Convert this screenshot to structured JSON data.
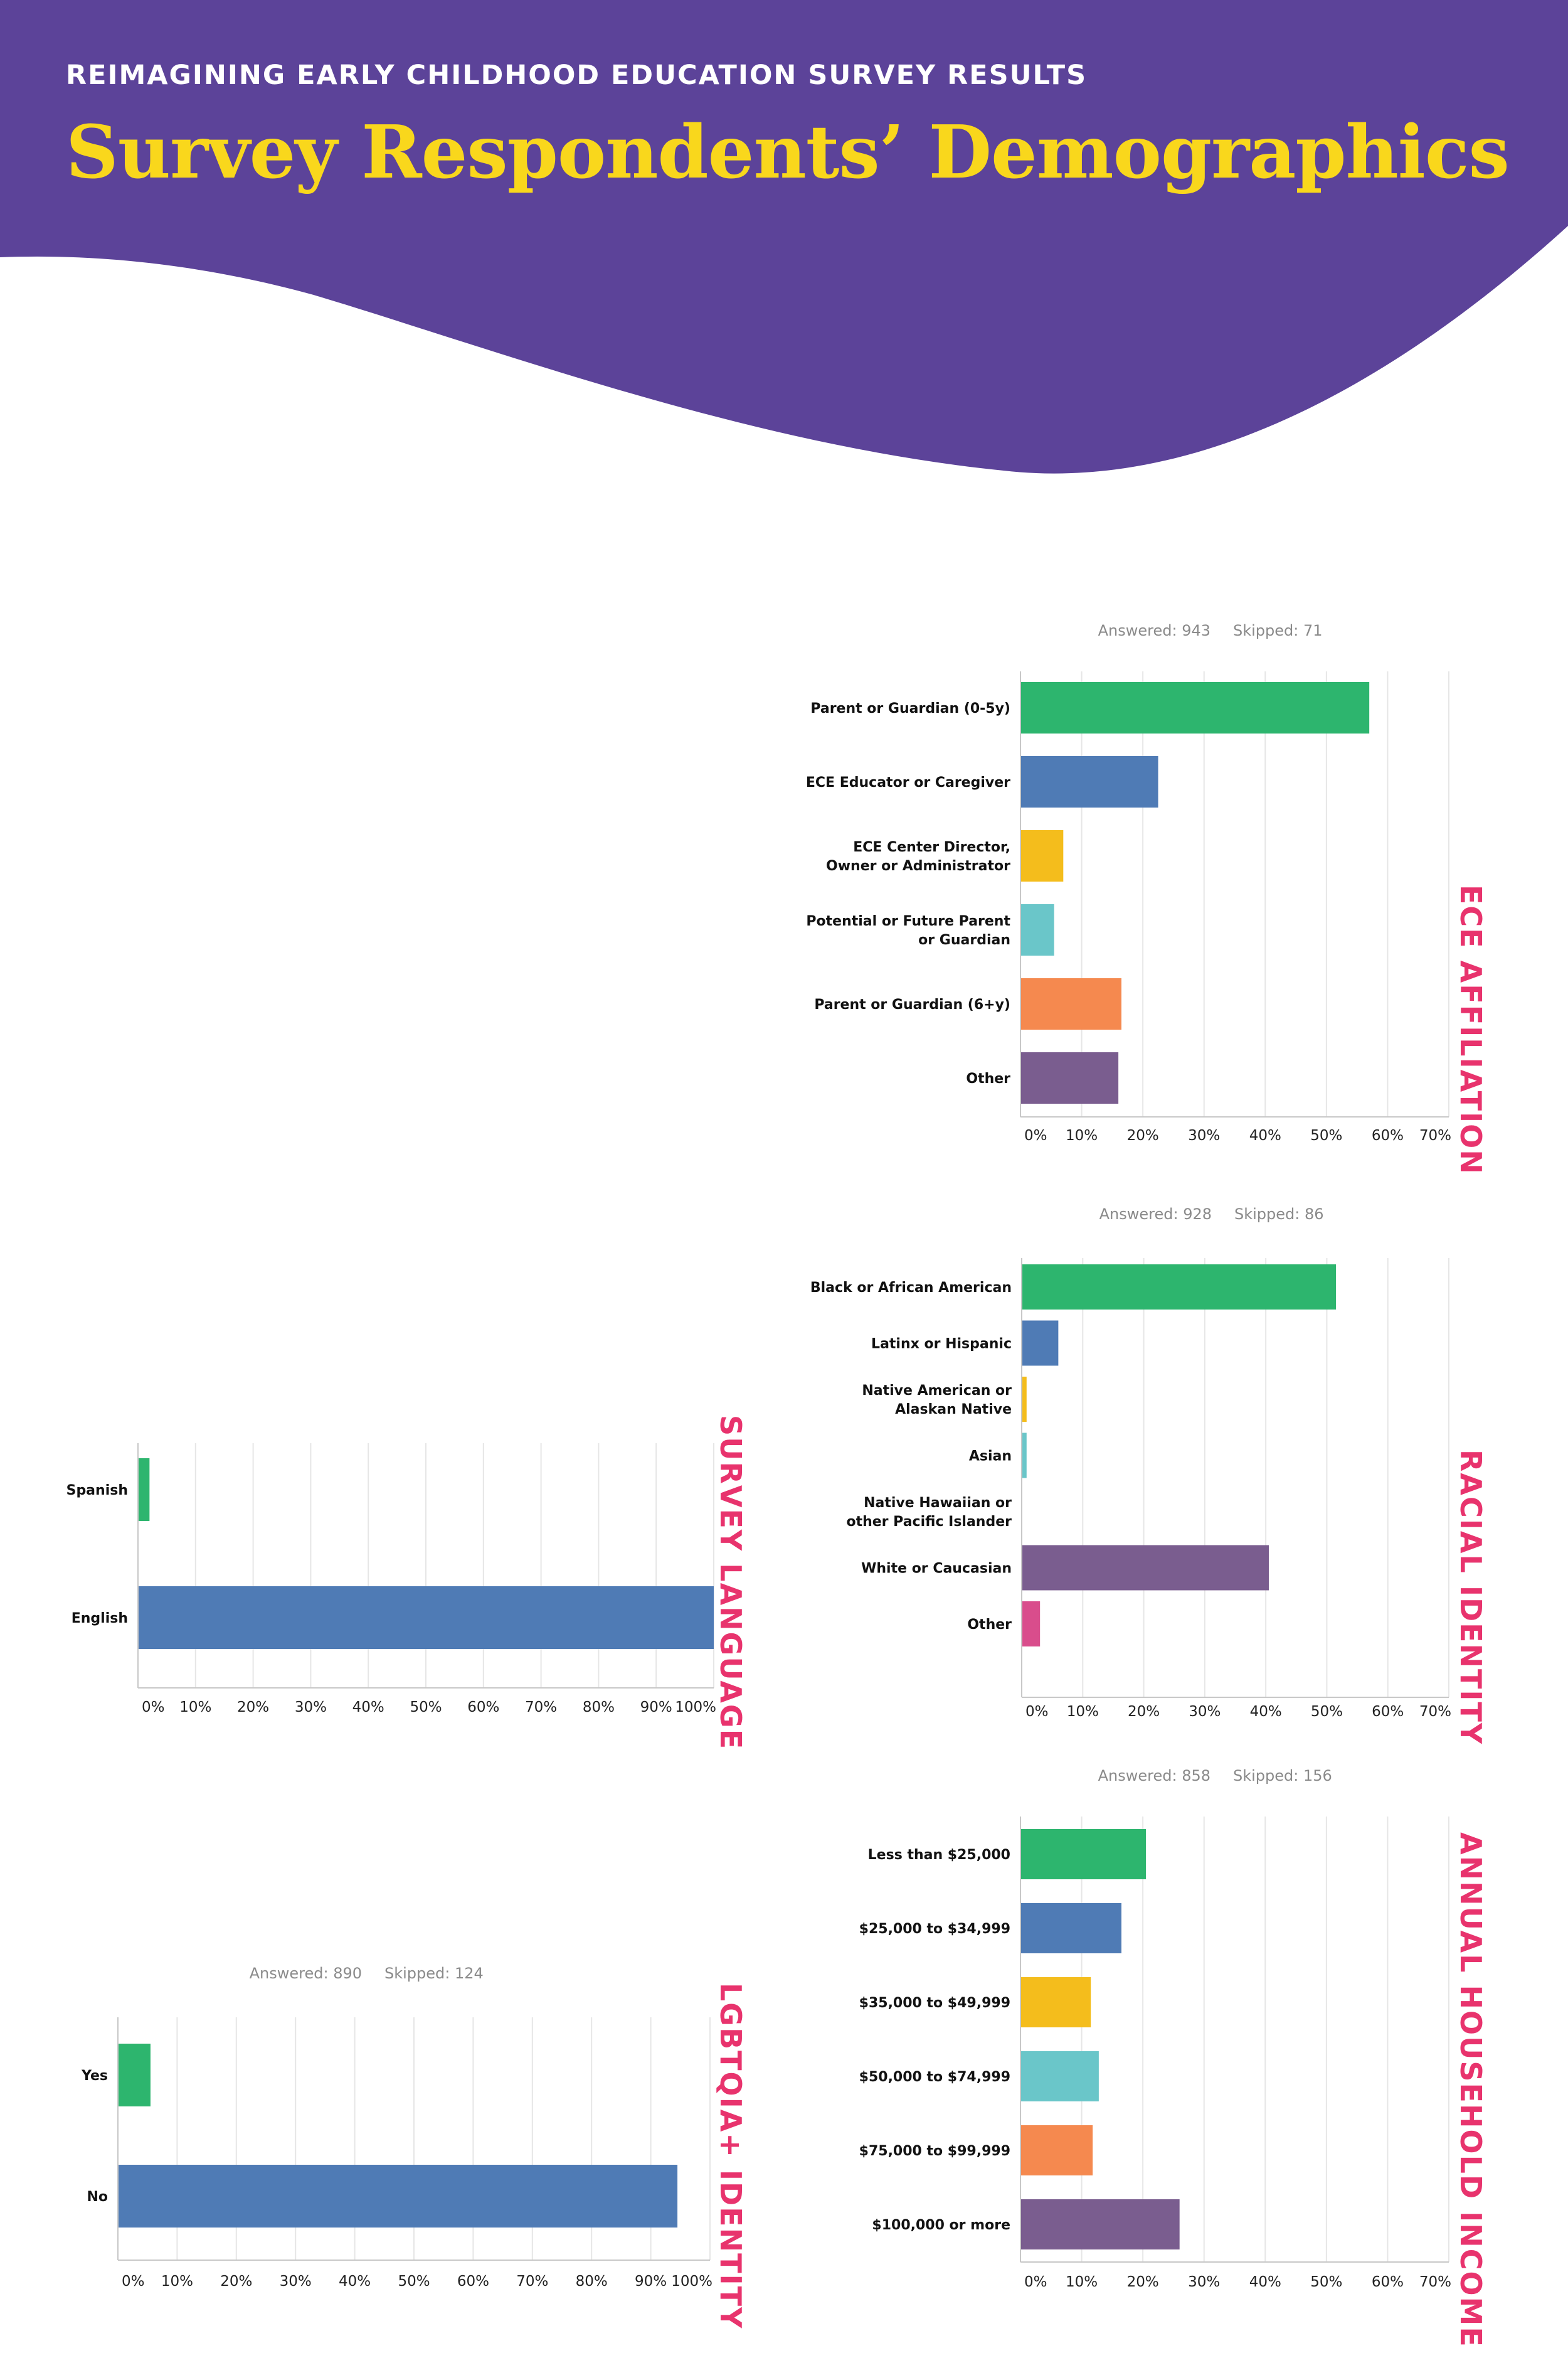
{
  "header": {
    "kicker": "REIMAGINING EARLY CHILDHOOD EDUCATION SURVEY RESULTS",
    "title": "Survey Respondents’ Demographics",
    "band_color": "#5c4399",
    "title_color": "#f9d71c"
  },
  "colors": {
    "palette": [
      "#2db56e",
      "#4f7bb5",
      "#f4bd1c",
      "#6ac6c9",
      "#f5894f",
      "#7a5d8f",
      "#d94d8c"
    ],
    "section_title": "#e8336d"
  },
  "chart_data": [
    {
      "id": "ece_affiliation",
      "type": "bar",
      "orientation": "horizontal",
      "section_title": "ECE AFFILIATION",
      "answered": "Answered: 943",
      "skipped": "Skipped: 71",
      "categories": [
        "Parent or Guardian (0-5y)",
        "ECE Educator or Caregiver",
        "ECE Center Director,\nOwner or Administrator",
        "Potential or Future Parent\nor Guardian",
        "Parent or Guardian (6+y)",
        "Other"
      ],
      "values": [
        57,
        22.5,
        7,
        5.5,
        16.5,
        16
      ],
      "colors": [
        "#2db56e",
        "#4f7bb5",
        "#f4bd1c",
        "#6ac6c9",
        "#f5894f",
        "#7a5d8f"
      ],
      "xlim": [
        0,
        70
      ],
      "ticks": [
        "0%",
        "10%",
        "20%",
        "30%",
        "40%",
        "50%",
        "60%",
        "70%"
      ],
      "grid": true
    },
    {
      "id": "racial_identity",
      "type": "bar",
      "orientation": "horizontal",
      "section_title": "RACIAL IDENTITY",
      "answered": "Answered: 928",
      "skipped": "Skipped: 86",
      "categories": [
        "Black or African American",
        "Latinx or Hispanic",
        "Native American or\nAlaskan Native",
        "Asian",
        "Native Hawaiian or\nother Pacific Islander",
        "White or Caucasian",
        "Other"
      ],
      "values": [
        51.5,
        6,
        0.8,
        0.8,
        0,
        40.5,
        3
      ],
      "colors": [
        "#2db56e",
        "#4f7bb5",
        "#f4bd1c",
        "#6ac6c9",
        "#f5894f",
        "#7a5d8f",
        "#d94d8c"
      ],
      "xlim": [
        0,
        70
      ],
      "ticks": [
        "0%",
        "10%",
        "20%",
        "30%",
        "40%",
        "50%",
        "60%",
        "70%"
      ],
      "grid": true
    },
    {
      "id": "survey_language",
      "type": "bar",
      "orientation": "horizontal",
      "section_title": "SURVEY LANGUAGE",
      "categories": [
        "Spanish",
        "English"
      ],
      "values": [
        2,
        100
      ],
      "colors": [
        "#2db56e",
        "#4f7bb5"
      ],
      "xlim": [
        0,
        100
      ],
      "ticks": [
        "0%",
        "10%",
        "20%",
        "30%",
        "40%",
        "50%",
        "60%",
        "70%",
        "80%",
        "90%",
        "100%"
      ],
      "grid": true
    },
    {
      "id": "annual_household_income",
      "type": "bar",
      "orientation": "horizontal",
      "section_title": "ANNUAL HOUSEHOLD INCOME",
      "answered": "Answered: 858",
      "skipped": "Skipped: 156",
      "categories": [
        "Less than $25,000",
        "$25,000 to $34,999",
        "$35,000 to $49,999",
        "$50,000 to $74,999",
        "$75,000 to $99,999",
        "$100,000 or more"
      ],
      "values": [
        20.5,
        16.5,
        11.5,
        12.8,
        11.8,
        26
      ],
      "colors": [
        "#2db56e",
        "#4f7bb5",
        "#f4bd1c",
        "#6ac6c9",
        "#f5894f",
        "#7a5d8f"
      ],
      "xlim": [
        0,
        70
      ],
      "ticks": [
        "0%",
        "10%",
        "20%",
        "30%",
        "40%",
        "50%",
        "60%",
        "70%"
      ],
      "grid": true
    },
    {
      "id": "lgbtqia_identity",
      "type": "bar",
      "orientation": "horizontal",
      "section_title": "LGBTQIA+ IDENTITY",
      "answered": "Answered: 890",
      "skipped": "Skipped: 124",
      "categories": [
        "Yes",
        "No"
      ],
      "values": [
        5.5,
        94.5
      ],
      "colors": [
        "#2db56e",
        "#4f7bb5"
      ],
      "xlim": [
        0,
        100
      ],
      "ticks": [
        "0%",
        "10%",
        "20%",
        "30%",
        "40%",
        "50%",
        "60%",
        "70%",
        "80%",
        "90%",
        "100%"
      ],
      "grid": true
    }
  ]
}
